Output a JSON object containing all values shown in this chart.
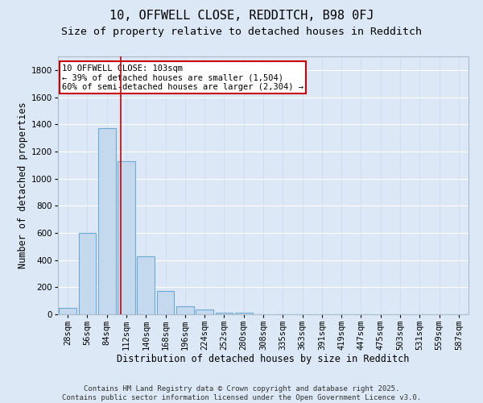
{
  "title1": "10, OFFWELL CLOSE, REDDITCH, B98 0FJ",
  "title2": "Size of property relative to detached houses in Redditch",
  "xlabel": "Distribution of detached houses by size in Redditch",
  "ylabel": "Number of detached properties",
  "bar_color": "#c5d9ee",
  "bar_edge_color": "#6eaad4",
  "bg_color": "#dce8f5",
  "grid_color": "#ffffff",
  "categories": [
    "28sqm",
    "56sqm",
    "84sqm",
    "112sqm",
    "140sqm",
    "168sqm",
    "196sqm",
    "224sqm",
    "252sqm",
    "280sqm",
    "308sqm",
    "335sqm",
    "363sqm",
    "391sqm",
    "419sqm",
    "447sqm",
    "475sqm",
    "503sqm",
    "531sqm",
    "559sqm",
    "587sqm"
  ],
  "values": [
    50,
    600,
    1370,
    1130,
    430,
    170,
    60,
    35,
    10,
    10,
    0,
    0,
    0,
    0,
    0,
    0,
    0,
    0,
    0,
    0,
    0
  ],
  "vline_x": 2.72,
  "vline_color": "#cc0000",
  "annotation_line1": "10 OFFWELL CLOSE: 103sqm",
  "annotation_line2": "← 39% of detached houses are smaller (1,504)",
  "annotation_line3": "60% of semi-detached houses are larger (2,304) →",
  "annotation_box_color": "#cc0000",
  "ylim": [
    0,
    1900
  ],
  "yticks": [
    0,
    200,
    400,
    600,
    800,
    1000,
    1200,
    1400,
    1600,
    1800
  ],
  "footer1": "Contains HM Land Registry data © Crown copyright and database right 2025.",
  "footer2": "Contains public sector information licensed under the Open Government Licence v3.0.",
  "title1_fontsize": 11,
  "title2_fontsize": 9.5,
  "tick_fontsize": 7.5,
  "label_fontsize": 8.5,
  "annotation_fontsize": 7.5,
  "footer_fontsize": 6.5
}
